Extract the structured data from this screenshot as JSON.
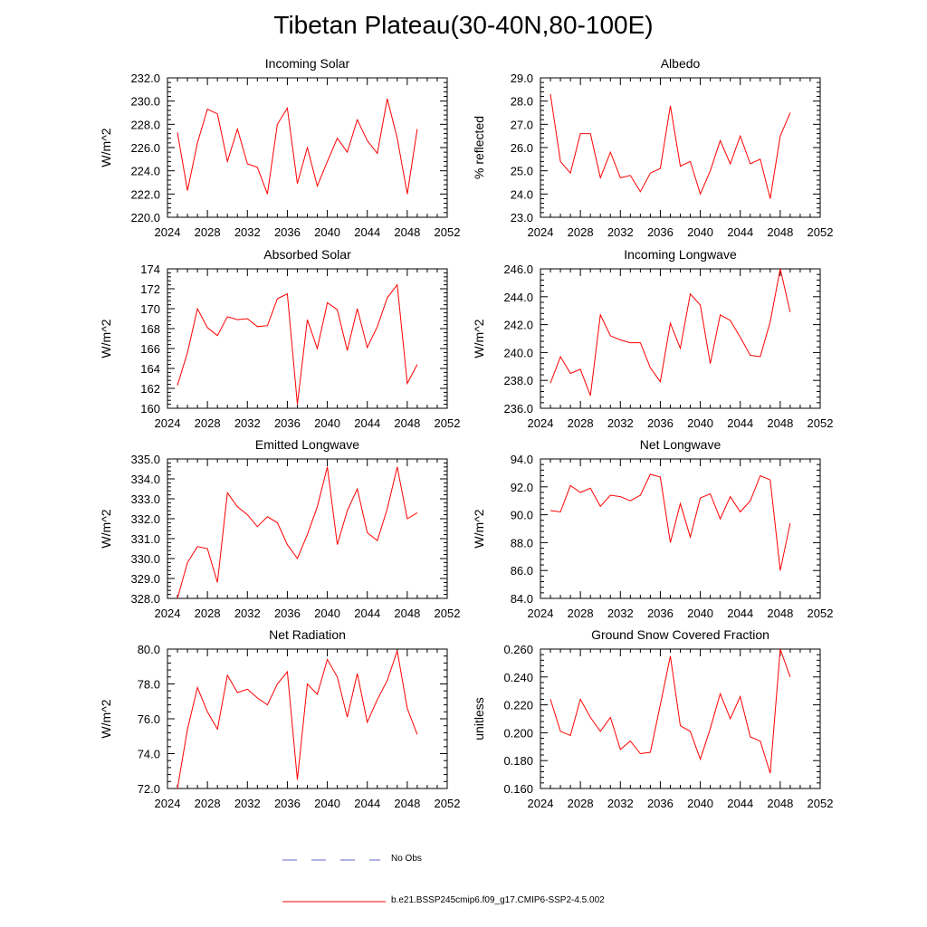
{
  "title": "Tibetan Plateau(30-40N,80-100E)",
  "colors": {
    "model": "#ff0000",
    "obs": "#6666cc",
    "axis": "#000000"
  },
  "legend": [
    {
      "label": "No Obs",
      "style": "dashed",
      "color": "#6666cc"
    },
    {
      "label": "b.e21.BSSP245cmip6.f09_g17.CMIP6-SSP2-4.5.002",
      "style": "solid",
      "color": "#ff0000"
    }
  ],
  "chart_data": [
    {
      "type": "line",
      "title": "Incoming Solar",
      "ylabel": "W/m^2",
      "xlim": [
        2024,
        2052
      ],
      "xticks": [
        2024,
        2028,
        2032,
        2036,
        2040,
        2044,
        2048,
        2052
      ],
      "ylim": [
        220,
        232
      ],
      "yticks": [
        220,
        222,
        224,
        226,
        228,
        230,
        232
      ],
      "ydecimals": 1,
      "x": [
        2025,
        2026,
        2027,
        2028,
        2029,
        2030,
        2031,
        2032,
        2033,
        2034,
        2035,
        2036,
        2037,
        2038,
        2039,
        2040,
        2041,
        2042,
        2043,
        2044,
        2045,
        2046,
        2047,
        2048,
        2049
      ],
      "series": [
        {
          "name": "b.e21.BSSP245cmip6.f09_g17.CMIP6-SSP2-4.5.002",
          "values": [
            227.3,
            222.3,
            226.4,
            229.3,
            228.9,
            224.8,
            227.6,
            224.6,
            224.3,
            222.0,
            228.0,
            229.4,
            222.9,
            226.0,
            222.7,
            224.8,
            226.8,
            225.6,
            228.4,
            226.6,
            225.5,
            230.2,
            226.8,
            222.0,
            227.6
          ]
        }
      ]
    },
    {
      "type": "line",
      "title": "Albedo",
      "ylabel": "% reflected",
      "xlim": [
        2024,
        2052
      ],
      "xticks": [
        2024,
        2028,
        2032,
        2036,
        2040,
        2044,
        2048,
        2052
      ],
      "ylim": [
        23,
        29
      ],
      "yticks": [
        23,
        24,
        25,
        26,
        27,
        28,
        29
      ],
      "ydecimals": 1,
      "x": [
        2025,
        2026,
        2027,
        2028,
        2029,
        2030,
        2031,
        2032,
        2033,
        2034,
        2035,
        2036,
        2037,
        2038,
        2039,
        2040,
        2041,
        2042,
        2043,
        2044,
        2045,
        2046,
        2047,
        2048,
        2049
      ],
      "series": [
        {
          "name": "b.e21.BSSP245cmip6.f09_g17.CMIP6-SSP2-4.5.002",
          "values": [
            28.3,
            25.4,
            24.9,
            26.6,
            26.6,
            24.7,
            25.8,
            24.7,
            24.8,
            24.1,
            24.9,
            25.1,
            27.8,
            25.2,
            25.4,
            24.0,
            25.0,
            26.3,
            25.3,
            26.5,
            25.3,
            25.5,
            23.8,
            26.5,
            27.5
          ]
        }
      ]
    },
    {
      "type": "line",
      "title": "Absorbed Solar",
      "ylabel": "W/m^2",
      "xlim": [
        2024,
        2052
      ],
      "xticks": [
        2024,
        2028,
        2032,
        2036,
        2040,
        2044,
        2048,
        2052
      ],
      "ylim": [
        160,
        174
      ],
      "yticks": [
        160,
        162,
        164,
        166,
        168,
        170,
        172,
        174
      ],
      "ydecimals": 0,
      "x": [
        2025,
        2026,
        2027,
        2028,
        2029,
        2030,
        2031,
        2032,
        2033,
        2034,
        2035,
        2036,
        2037,
        2038,
        2039,
        2040,
        2041,
        2042,
        2043,
        2044,
        2045,
        2046,
        2047,
        2048,
        2049
      ],
      "series": [
        {
          "name": "b.e21.BSSP245cmip6.f09_g17.CMIP6-SSP2-4.5.002",
          "values": [
            162.3,
            165.6,
            170.0,
            168.1,
            167.3,
            169.2,
            168.9,
            169.0,
            168.2,
            168.3,
            171.0,
            171.5,
            160.4,
            168.9,
            166.0,
            170.6,
            169.9,
            165.8,
            170.0,
            166.1,
            168.2,
            171.1,
            172.4,
            162.5,
            164.4
          ]
        }
      ]
    },
    {
      "type": "line",
      "title": "Incoming Longwave",
      "ylabel": "W/m^2",
      "xlim": [
        2024,
        2052
      ],
      "xticks": [
        2024,
        2028,
        2032,
        2036,
        2040,
        2044,
        2048,
        2052
      ],
      "ylim": [
        236,
        246
      ],
      "yticks": [
        236,
        238,
        240,
        242,
        244,
        246
      ],
      "ydecimals": 1,
      "x": [
        2025,
        2026,
        2027,
        2028,
        2029,
        2030,
        2031,
        2032,
        2033,
        2034,
        2035,
        2036,
        2037,
        2038,
        2039,
        2040,
        2041,
        2042,
        2043,
        2044,
        2045,
        2046,
        2047,
        2048,
        2049
      ],
      "series": [
        {
          "name": "b.e21.BSSP245cmip6.f09_g17.CMIP6-SSP2-4.5.002",
          "values": [
            237.8,
            239.7,
            238.5,
            238.8,
            236.9,
            242.7,
            241.2,
            240.9,
            240.7,
            240.7,
            238.9,
            237.9,
            242.1,
            240.3,
            244.2,
            243.4,
            239.2,
            242.7,
            242.3,
            241.1,
            239.8,
            239.7,
            242.2,
            246.0,
            242.9
          ]
        }
      ]
    },
    {
      "type": "line",
      "title": "Emitted Longwave",
      "ylabel": "W/m^2",
      "xlim": [
        2024,
        2052
      ],
      "xticks": [
        2024,
        2028,
        2032,
        2036,
        2040,
        2044,
        2048,
        2052
      ],
      "ylim": [
        328,
        335
      ],
      "yticks": [
        328,
        329,
        330,
        331,
        332,
        333,
        334,
        335
      ],
      "ydecimals": 1,
      "x": [
        2025,
        2026,
        2027,
        2028,
        2029,
        2030,
        2031,
        2032,
        2033,
        2034,
        2035,
        2036,
        2037,
        2038,
        2039,
        2040,
        2041,
        2042,
        2043,
        2044,
        2045,
        2046,
        2047,
        2048,
        2049
      ],
      "series": [
        {
          "name": "b.e21.BSSP245cmip6.f09_g17.CMIP6-SSP2-4.5.002",
          "values": [
            328.0,
            329.8,
            330.6,
            330.5,
            328.8,
            333.3,
            332.6,
            332.2,
            331.6,
            332.1,
            331.8,
            330.7,
            330.0,
            331.2,
            332.6,
            334.6,
            330.7,
            332.4,
            333.5,
            331.3,
            330.9,
            332.5,
            334.6,
            332.0,
            332.3
          ]
        }
      ]
    },
    {
      "type": "line",
      "title": "Net Longwave",
      "ylabel": "W/m^2",
      "xlim": [
        2024,
        2052
      ],
      "xticks": [
        2024,
        2028,
        2032,
        2036,
        2040,
        2044,
        2048,
        2052
      ],
      "ylim": [
        84,
        94
      ],
      "yticks": [
        84,
        86,
        88,
        90,
        92,
        94
      ],
      "ydecimals": 1,
      "x": [
        2025,
        2026,
        2027,
        2028,
        2029,
        2030,
        2031,
        2032,
        2033,
        2034,
        2035,
        2036,
        2037,
        2038,
        2039,
        2040,
        2041,
        2042,
        2043,
        2044,
        2045,
        2046,
        2047,
        2048,
        2049
      ],
      "series": [
        {
          "name": "b.e21.BSSP245cmip6.f09_g17.CMIP6-SSP2-4.5.002",
          "values": [
            90.3,
            90.2,
            92.1,
            91.6,
            91.9,
            90.6,
            91.4,
            91.3,
            91.0,
            91.4,
            92.9,
            92.7,
            88.0,
            90.8,
            88.4,
            91.2,
            91.5,
            89.7,
            91.3,
            90.2,
            91.0,
            92.8,
            92.5,
            86.0,
            89.4
          ]
        }
      ]
    },
    {
      "type": "line",
      "title": "Net Radiation",
      "ylabel": "W/m^2",
      "xlim": [
        2024,
        2052
      ],
      "xticks": [
        2024,
        2028,
        2032,
        2036,
        2040,
        2044,
        2048,
        2052
      ],
      "ylim": [
        72,
        80
      ],
      "yticks": [
        72,
        74,
        76,
        78,
        80
      ],
      "ydecimals": 1,
      "x": [
        2025,
        2026,
        2027,
        2028,
        2029,
        2030,
        2031,
        2032,
        2033,
        2034,
        2035,
        2036,
        2037,
        2038,
        2039,
        2040,
        2041,
        2042,
        2043,
        2044,
        2045,
        2046,
        2047,
        2048,
        2049
      ],
      "series": [
        {
          "name": "b.e21.BSSP245cmip6.f09_g17.CMIP6-SSP2-4.5.002",
          "values": [
            72.0,
            75.4,
            77.8,
            76.4,
            75.4,
            78.5,
            77.5,
            77.7,
            77.2,
            76.8,
            78.0,
            78.7,
            72.5,
            78.0,
            77.4,
            79.4,
            78.4,
            76.1,
            78.6,
            75.8,
            77.1,
            78.2,
            79.9,
            76.6,
            75.1
          ]
        }
      ]
    },
    {
      "type": "line",
      "title": "Ground Snow Covered Fraction",
      "ylabel": "unitless",
      "xlim": [
        2024,
        2052
      ],
      "xticks": [
        2024,
        2028,
        2032,
        2036,
        2040,
        2044,
        2048,
        2052
      ],
      "ylim": [
        0.16,
        0.26
      ],
      "yticks": [
        0.16,
        0.18,
        0.2,
        0.22,
        0.24,
        0.26
      ],
      "ydecimals": 3,
      "x": [
        2025,
        2026,
        2027,
        2028,
        2029,
        2030,
        2031,
        2032,
        2033,
        2034,
        2035,
        2036,
        2037,
        2038,
        2039,
        2040,
        2041,
        2042,
        2043,
        2044,
        2045,
        2046,
        2047,
        2048,
        2049
      ],
      "series": [
        {
          "name": "b.e21.BSSP245cmip6.f09_g17.CMIP6-SSP2-4.5.002",
          "values": [
            0.224,
            0.201,
            0.198,
            0.224,
            0.211,
            0.201,
            0.211,
            0.188,
            0.194,
            0.185,
            0.186,
            0.22,
            0.255,
            0.205,
            0.201,
            0.181,
            0.203,
            0.228,
            0.21,
            0.226,
            0.197,
            0.194,
            0.171,
            0.26,
            0.24
          ]
        }
      ]
    }
  ]
}
